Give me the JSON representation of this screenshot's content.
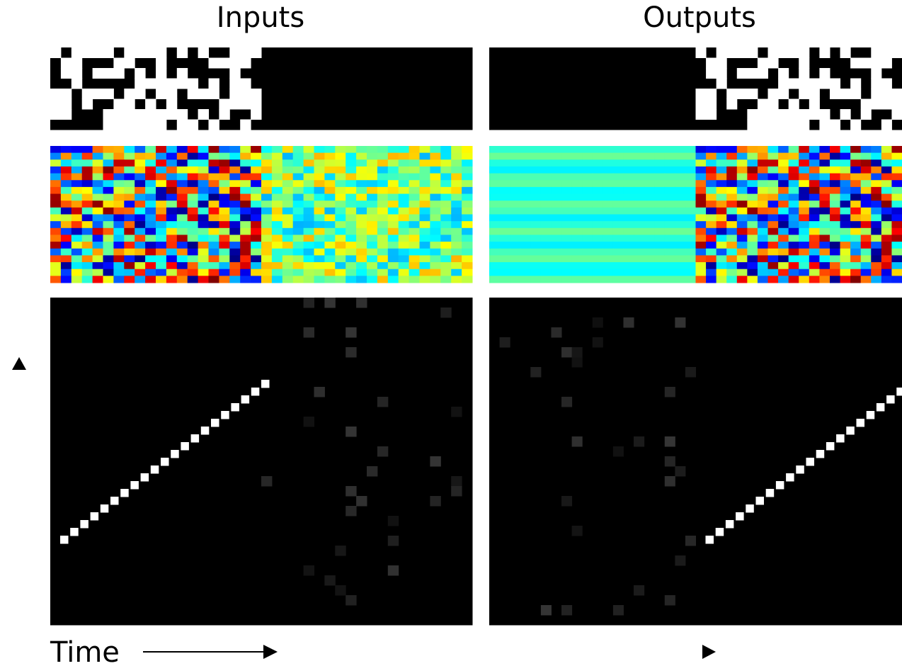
{
  "panels": {
    "inputs": {
      "title": "Inputs"
    },
    "outputs": {
      "title": "Outputs"
    }
  },
  "axis": {
    "label": "Time"
  }
}
